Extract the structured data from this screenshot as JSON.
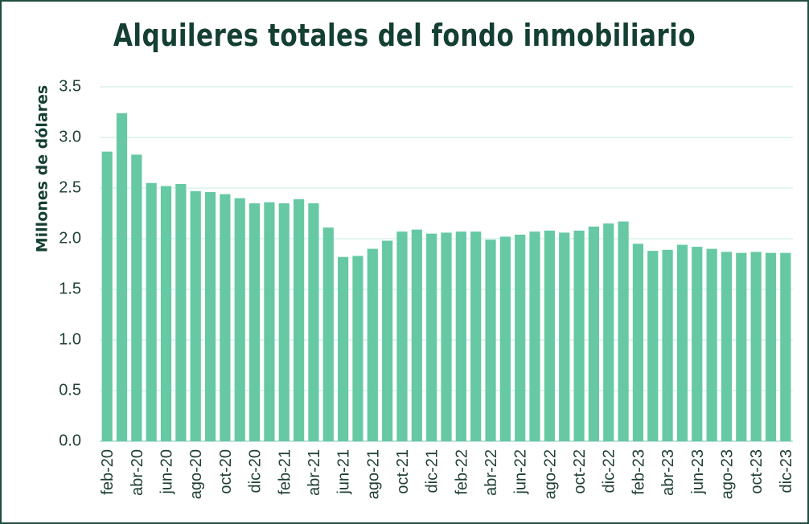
{
  "chart_data": {
    "type": "bar",
    "title": "Alquileres totales del fondo inmobiliario",
    "xlabel": "",
    "ylabel": "Millones de dólares",
    "ylim": [
      0,
      3.5
    ],
    "yticks": [
      "0.0",
      "0.5",
      "1.0",
      "1.5",
      "2.0",
      "2.5",
      "3.0",
      "3.5"
    ],
    "grid": true,
    "bar_color": "#66c9a4",
    "grid_color": "#d3efe6",
    "title_color": "#143f33",
    "categories": [
      "feb-20",
      "mar-20",
      "abr-20",
      "may-20",
      "jun-20",
      "jul-20",
      "ago-20",
      "sep-20",
      "oct-20",
      "nov-20",
      "dic-20",
      "ene-21",
      "feb-21",
      "mar-21",
      "abr-21",
      "may-21",
      "jun-21",
      "jul-21",
      "ago-21",
      "sep-21",
      "oct-21",
      "nov-21",
      "dic-21",
      "ene-22",
      "feb-22",
      "mar-22",
      "abr-22",
      "may-22",
      "jun-22",
      "jul-22",
      "ago-22",
      "sep-22",
      "oct-22",
      "nov-22",
      "dic-22",
      "ene-23",
      "feb-23",
      "mar-23",
      "abr-23",
      "may-23",
      "jun-23",
      "jul-23",
      "ago-23",
      "sep-23",
      "oct-23",
      "nov-23",
      "dic-23"
    ],
    "tick_labels": [
      "feb-20",
      "abr-20",
      "jun-20",
      "ago-20",
      "oct-20",
      "dic-20",
      "feb-21",
      "abr-21",
      "jun-21",
      "ago-21",
      "oct-21",
      "dic-21",
      "feb-22",
      "abr-22",
      "jun-22",
      "ago-22",
      "oct-22",
      "dic-22",
      "feb-23",
      "abr-23",
      "jun-23",
      "ago-23",
      "oct-23",
      "dic-23"
    ],
    "values": [
      2.86,
      3.24,
      2.83,
      2.55,
      2.52,
      2.54,
      2.47,
      2.46,
      2.44,
      2.4,
      2.35,
      2.36,
      2.35,
      2.39,
      2.35,
      2.11,
      1.82,
      1.83,
      1.9,
      1.98,
      2.07,
      2.09,
      2.05,
      2.06,
      2.07,
      2.07,
      1.99,
      2.02,
      2.04,
      2.07,
      2.08,
      2.06,
      2.08,
      2.12,
      2.15,
      2.17,
      1.95,
      1.88,
      1.89,
      1.94,
      1.92,
      1.9,
      1.87,
      1.86,
      1.87,
      1.86,
      1.86
    ]
  }
}
